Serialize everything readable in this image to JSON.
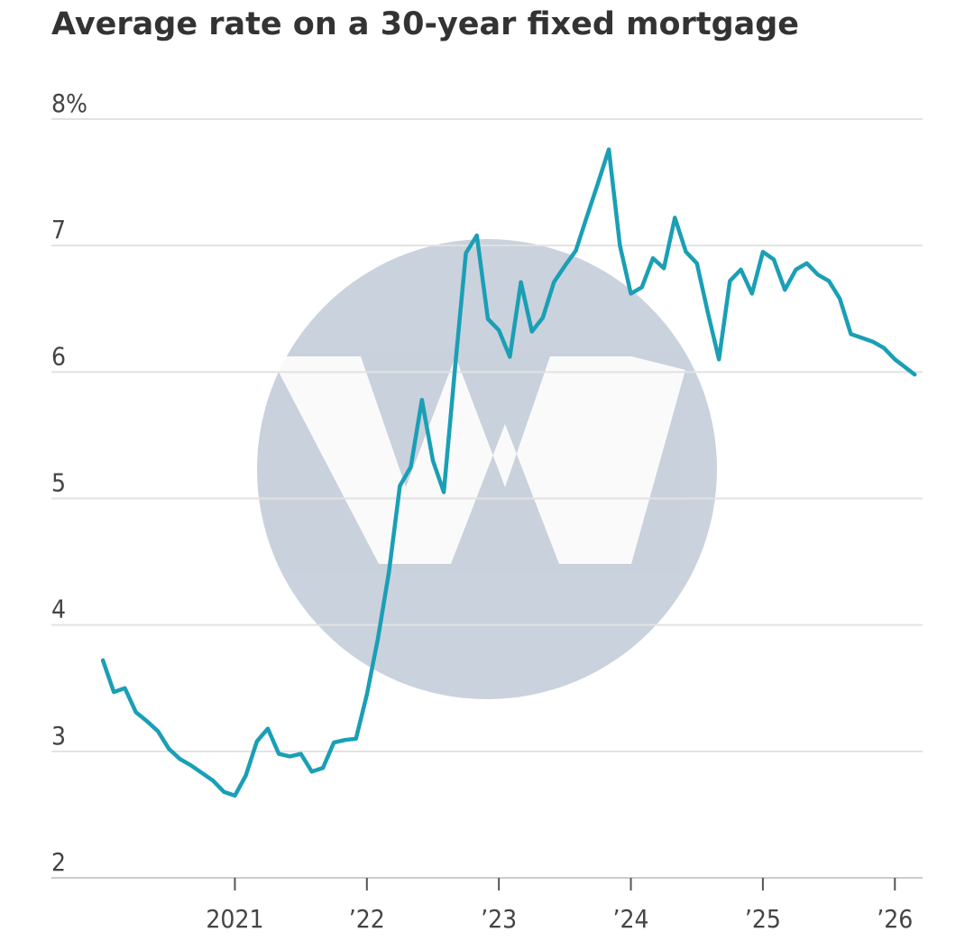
{
  "chart_data": {
    "type": "line",
    "title": "Average rate on a 30-year fixed mortgage",
    "x": [
      2020.0,
      2020.083,
      2020.167,
      2020.25,
      2020.333,
      2020.417,
      2020.5,
      2020.583,
      2020.667,
      2020.75,
      2020.833,
      2020.917,
      2021.0,
      2021.083,
      2021.167,
      2021.25,
      2021.333,
      2021.417,
      2021.5,
      2021.583,
      2021.667,
      2021.75,
      2021.833,
      2021.917,
      2022.0,
      2022.083,
      2022.167,
      2022.25,
      2022.333,
      2022.417,
      2022.5,
      2022.583,
      2022.667,
      2022.75,
      2022.833,
      2022.917,
      2023.0,
      2023.083,
      2023.167,
      2023.25,
      2023.333,
      2023.417,
      2023.5,
      2023.583,
      2023.667,
      2023.75,
      2023.833,
      2023.917,
      2024.0,
      2024.083,
      2024.167,
      2024.25,
      2024.333,
      2024.417,
      2024.5,
      2024.583,
      2024.667,
      2024.75,
      2024.833,
      2024.917,
      2025.0,
      2025.083,
      2025.167,
      2025.25,
      2025.333,
      2025.417,
      2025.5,
      2025.583,
      2025.667,
      2025.75,
      2025.833,
      2025.917,
      2026.0,
      2026.15
    ],
    "series": [
      {
        "color": "#1a9fb5",
        "values": [
          3.72,
          3.47,
          3.5,
          3.31,
          3.24,
          3.16,
          3.02,
          2.94,
          2.89,
          2.83,
          2.77,
          2.68,
          2.65,
          2.81,
          3.08,
          3.18,
          2.98,
          2.96,
          2.98,
          2.84,
          2.87,
          3.07,
          3.09,
          3.1,
          3.45,
          3.89,
          4.42,
          5.1,
          5.25,
          5.78,
          5.3,
          5.05,
          6.02,
          6.94,
          7.08,
          6.42,
          6.33,
          6.12,
          6.71,
          6.32,
          6.43,
          6.71,
          6.84,
          6.96,
          7.23,
          7.49,
          7.76,
          7.0,
          6.62,
          6.67,
          6.9,
          6.82,
          7.22,
          6.95,
          6.86,
          6.47,
          6.1,
          6.72,
          6.81,
          6.62,
          6.95,
          6.89,
          6.65,
          6.81,
          6.86,
          6.77,
          6.72,
          6.58,
          6.3,
          6.27,
          6.24,
          6.19,
          6.1,
          5.98
        ]
      }
    ],
    "xlim": [
      2019.61,
      2026.21
    ],
    "xticks": [
      {
        "value": 2021,
        "label": "2021"
      },
      {
        "value": 2022,
        "label": "’22"
      },
      {
        "value": 2023,
        "label": "’23"
      },
      {
        "value": 2024,
        "label": "’24"
      },
      {
        "value": 2025,
        "label": "’25"
      },
      {
        "value": 2026,
        "label": "’26"
      }
    ],
    "ylim": [
      2,
      8
    ],
    "yticks": [
      2,
      3,
      4,
      5,
      6,
      7,
      {
        "value": 8,
        "label": "8%"
      }
    ],
    "grid": true
  }
}
